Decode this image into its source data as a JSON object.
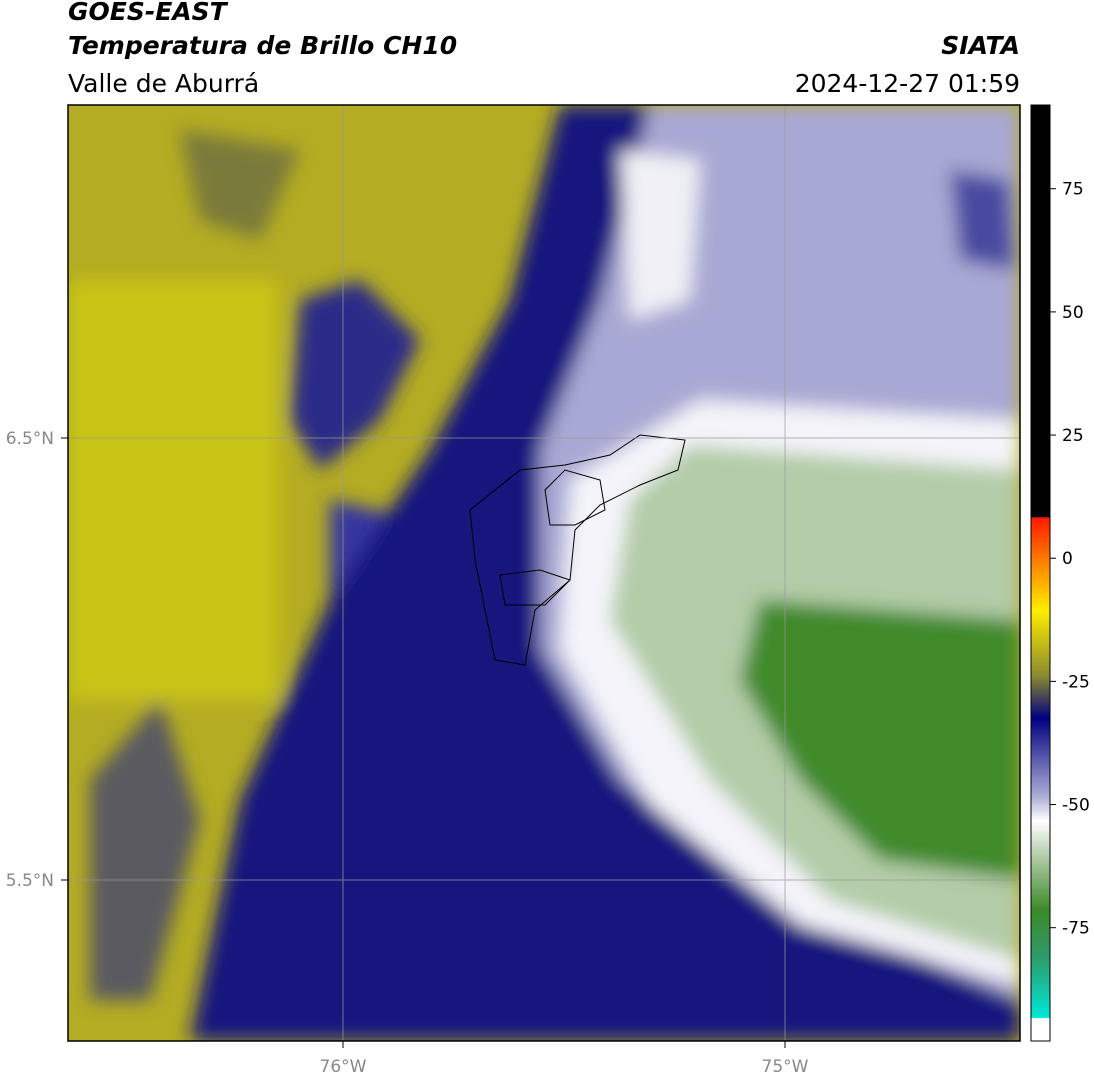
{
  "header": {
    "title": "GOES-EAST",
    "subtitle": "Temperatura de Brillo CH10",
    "region": "Valle de Aburrá",
    "source": "SIATA",
    "datetime": "2024-12-27 01:59"
  },
  "map": {
    "lat_ticks": [
      "6.5°N",
      "5.5°N"
    ],
    "lon_ticks": [
      "76°W",
      "75°W"
    ]
  },
  "colorbar": {
    "lim": [
      -98,
      92
    ],
    "ticks": [
      75,
      50,
      25,
      0,
      -25,
      -50,
      -75
    ]
  }
}
